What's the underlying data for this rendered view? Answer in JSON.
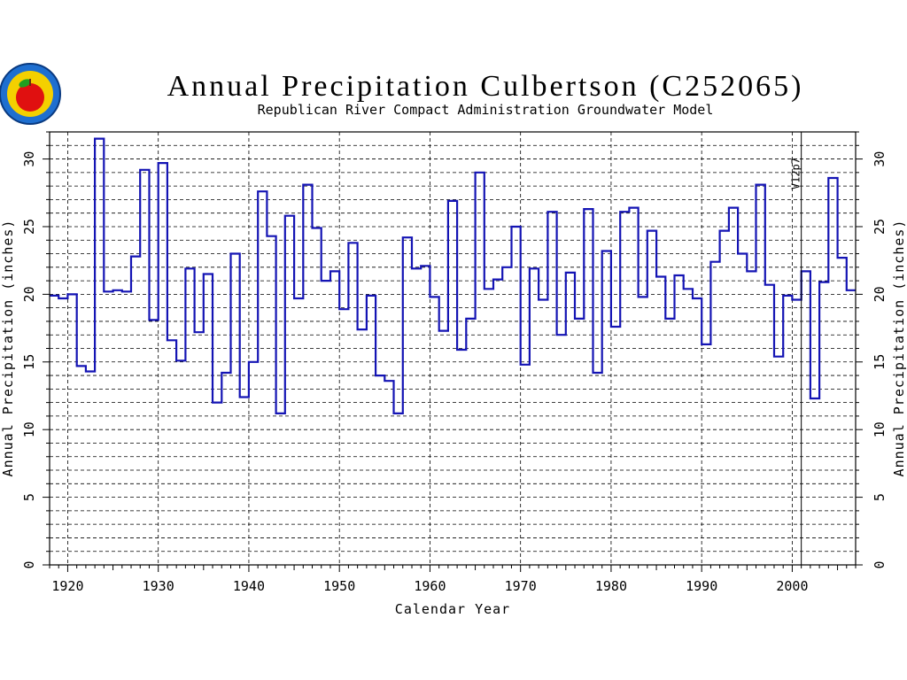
{
  "chart_data": {
    "type": "line",
    "step": true,
    "title": "Annual Precipitation Culbertson (C252065)",
    "subtitle": "Republican River Compact Administration Groundwater Model",
    "xlabel": "Calendar Year",
    "ylabel": "Annual Precipitation (inches)",
    "xlim": [
      1918,
      2007
    ],
    "ylim": [
      0,
      32
    ],
    "x_ticks": [
      "1920",
      "1930",
      "1940",
      "1950",
      "1960",
      "1970",
      "1980",
      "1990",
      "2000"
    ],
    "y_ticks": [
      "0",
      "5",
      "10",
      "15",
      "20",
      "25",
      "30"
    ],
    "grid": true,
    "marker": {
      "x": 2001,
      "label": "V12p7"
    },
    "series_color": "#1414b4",
    "x": [
      1918,
      1919,
      1920,
      1921,
      1922,
      1923,
      1924,
      1925,
      1926,
      1927,
      1928,
      1929,
      1930,
      1931,
      1932,
      1933,
      1934,
      1935,
      1936,
      1937,
      1938,
      1939,
      1940,
      1941,
      1942,
      1943,
      1944,
      1945,
      1946,
      1947,
      1948,
      1949,
      1950,
      1951,
      1952,
      1953,
      1954,
      1955,
      1956,
      1957,
      1958,
      1959,
      1960,
      1961,
      1962,
      1963,
      1964,
      1965,
      1966,
      1967,
      1968,
      1969,
      1970,
      1971,
      1972,
      1973,
      1974,
      1975,
      1976,
      1977,
      1978,
      1979,
      1980,
      1981,
      1982,
      1983,
      1984,
      1985,
      1986,
      1987,
      1988,
      1989,
      1990,
      1991,
      1992,
      1993,
      1994,
      1995,
      1996,
      1997,
      1998,
      1999,
      2000,
      2001,
      2002,
      2003,
      2004,
      2005,
      2006
    ],
    "values": [
      19.9,
      19.7,
      20.0,
      14.7,
      14.3,
      31.5,
      20.2,
      20.3,
      20.2,
      22.8,
      29.2,
      18.1,
      29.7,
      16.6,
      15.1,
      21.9,
      17.2,
      21.5,
      12.0,
      14.2,
      23.0,
      12.4,
      15.0,
      27.6,
      24.3,
      11.2,
      25.8,
      19.7,
      28.1,
      24.9,
      21.0,
      21.7,
      18.9,
      23.8,
      17.4,
      19.9,
      14.0,
      13.6,
      11.2,
      24.2,
      21.9,
      22.1,
      19.8,
      17.3,
      26.9,
      15.9,
      18.2,
      29.0,
      20.4,
      21.1,
      22.0,
      25.0,
      14.8,
      21.9,
      19.6,
      26.1,
      17.0,
      21.6,
      18.2,
      26.3,
      14.2,
      23.2,
      17.6,
      26.1,
      26.4,
      19.8,
      24.7,
      21.3,
      18.2,
      21.4,
      20.4,
      19.7,
      16.3,
      22.4,
      24.7,
      26.4,
      23.0,
      21.7,
      28.1,
      20.7,
      15.4,
      19.9,
      19.6,
      21.7,
      12.3,
      20.9,
      28.6,
      22.7,
      20.3
    ]
  }
}
